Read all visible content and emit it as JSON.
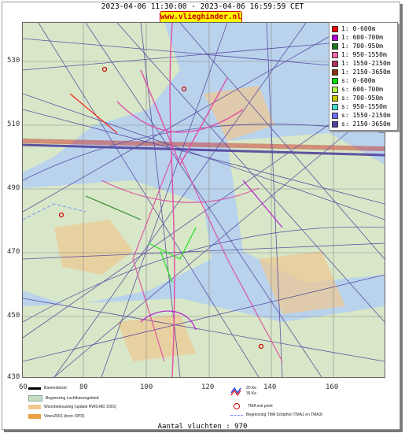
{
  "header": {
    "title": "2023-04-06 11:30:00 - 2023-04-06 16:59:59 CET",
    "site_badge": "www.vlieghinder.nl"
  },
  "axes": {
    "y_ticks": [
      "530",
      "510",
      "490",
      "470",
      "450",
      "430"
    ],
    "x_ticks": [
      "60",
      "80",
      "100",
      "120",
      "140",
      "160"
    ]
  },
  "legend": {
    "items": [
      {
        "label": "1: 0-600m",
        "color": "#ff0000"
      },
      {
        "label": "1: 600-700m",
        "color": "#b000d0"
      },
      {
        "label": "1: 700-950m",
        "color": "#1a7a1a"
      },
      {
        "label": "1: 950-1550m",
        "color": "#ff66aa"
      },
      {
        "label": "1: 1550-2150m",
        "color": "#b0305a"
      },
      {
        "label": "1: 2150-3650m",
        "color": "#8b3010"
      },
      {
        "label": "s: 0-600m",
        "color": "#00e000"
      },
      {
        "label": "s: 600-700m",
        "color": "#b0ff50"
      },
      {
        "label": "s: 700-950m",
        "color": "#c8c800"
      },
      {
        "label": "s: 950-1550m",
        "color": "#40e0d0"
      },
      {
        "label": "s: 1550-2150m",
        "color": "#7070ff"
      },
      {
        "label": "s: 2150-3650m",
        "color": "#5040a0"
      }
    ]
  },
  "map_legend": {
    "runway": "Banenstelsel",
    "airport_boundary": "Begrenzing Luchthavengebied",
    "housing": "Woonbebouwing (update RWS-MD 2001)",
    "vinex": "Vinex2001 (bron: RPD)",
    "noise_20": "20 Ke",
    "noise_35": "35 Ke",
    "exit_point": "TMA exit point",
    "tma_boundary": "Begrenzing TMA Schiphol  (TMA1 en TMA3)"
  },
  "footer": {
    "flight_count": "Aantal vluchten : 970"
  },
  "colors": {
    "water": "#b9d3ec",
    "land": "#d8e7c8",
    "urban": "#f0c890",
    "track_blue": "#4b3a9a",
    "track_pink": "#e040a0",
    "track_red": "#c8281e"
  }
}
